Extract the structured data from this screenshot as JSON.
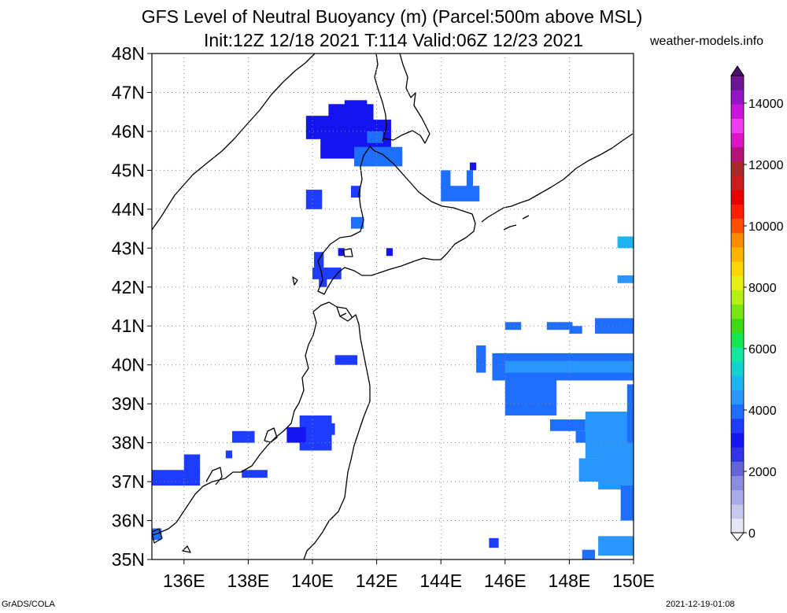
{
  "title_line1": "GFS Level of Neutral Buoyancy (m) (Parcel:500m above MSL)",
  "title_line2": "Init:12Z 12/18 2021 T:114 Valid:06Z 12/23 2021",
  "site": "weather-models.info",
  "credit_left": "GrADS/COLA",
  "credit_right": "2021-12-19-01:08",
  "map": {
    "lon_range": [
      135,
      150
    ],
    "lat_range": [
      35,
      48
    ],
    "lat_labels": [
      "35N",
      "36N",
      "37N",
      "38N",
      "39N",
      "40N",
      "41N",
      "42N",
      "43N",
      "44N",
      "45N",
      "46N",
      "47N",
      "48N"
    ],
    "lon_labels": [
      "136E",
      "138E",
      "140E",
      "142E",
      "144E",
      "146E",
      "148E",
      "150E"
    ]
  },
  "colorbar": {
    "labels": [
      "0",
      "2000",
      "4000",
      "6000",
      "8000",
      "10000",
      "12000",
      "14000"
    ],
    "colors": [
      "#e6e6f5",
      "#c8c8ef",
      "#aaaae8",
      "#8c8ce0",
      "#6464d8",
      "#3232e6",
      "#1414f0",
      "#1e3cff",
      "#1e6eff",
      "#2896ff",
      "#1eb4f0",
      "#14d2d2",
      "#14e6a0",
      "#14e650",
      "#3cdc14",
      "#78e614",
      "#b4f014",
      "#e6f014",
      "#ffd700",
      "#ffb400",
      "#ff8c00",
      "#ff5000",
      "#ff1e00",
      "#e60000",
      "#c81e1e",
      "#aa2828",
      "#b4147a",
      "#dc14c8",
      "#f03cf0",
      "#c814dc",
      "#9614c8",
      "#6e1496"
    ]
  }
}
